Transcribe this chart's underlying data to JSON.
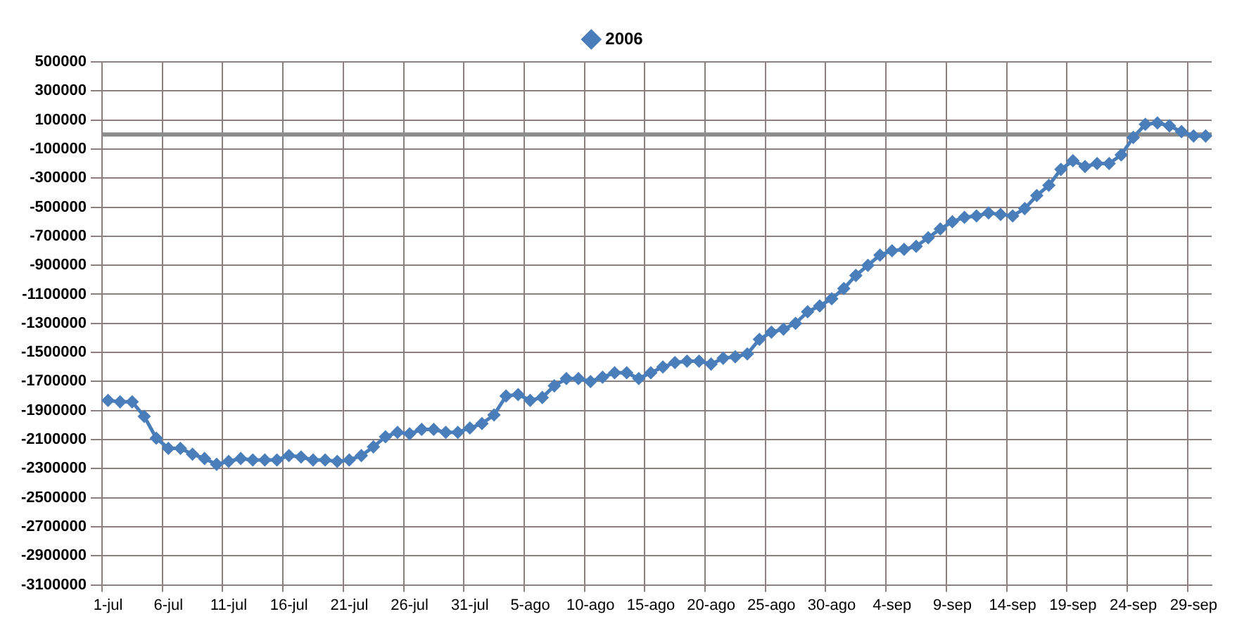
{
  "chart_data": {
    "type": "line",
    "categories": [
      "1-jul",
      null,
      null,
      null,
      null,
      "6-jul",
      null,
      null,
      null,
      null,
      "11-jul",
      null,
      null,
      null,
      null,
      "16-jul",
      null,
      null,
      null,
      null,
      "21-jul",
      null,
      null,
      null,
      null,
      "26-jul",
      null,
      null,
      null,
      null,
      "31-jul",
      null,
      null,
      null,
      null,
      "5-ago",
      null,
      null,
      null,
      null,
      "10-ago",
      null,
      null,
      null,
      null,
      "15-ago",
      null,
      null,
      null,
      null,
      "20-ago",
      null,
      null,
      null,
      null,
      "25-ago",
      null,
      null,
      null,
      null,
      "30-ago",
      null,
      null,
      null,
      null,
      "4-sep",
      null,
      null,
      null,
      null,
      "9-sep",
      null,
      null,
      null,
      null,
      "14-sep",
      null,
      null,
      null,
      null,
      "19-sep",
      null,
      null,
      null,
      null,
      "24-sep",
      null,
      null,
      null,
      null,
      "29-sep",
      null
    ],
    "series": [
      {
        "name": "2006",
        "color": "#4a7ebb",
        "values": [
          -1830000,
          -1840000,
          -1840000,
          -1940000,
          -2090000,
          -2160000,
          -2160000,
          -2200000,
          -2230000,
          -2270000,
          -2250000,
          -2230000,
          -2240000,
          -2240000,
          -2240000,
          -2210000,
          -2220000,
          -2240000,
          -2240000,
          -2250000,
          -2240000,
          -2210000,
          -2150000,
          -2080000,
          -2050000,
          -2060000,
          -2030000,
          -2030000,
          -2050000,
          -2050000,
          -2020000,
          -1990000,
          -1930000,
          -1800000,
          -1790000,
          -1830000,
          -1810000,
          -1730000,
          -1680000,
          -1680000,
          -1700000,
          -1670000,
          -1640000,
          -1640000,
          -1680000,
          -1640000,
          -1600000,
          -1570000,
          -1560000,
          -1560000,
          -1580000,
          -1540000,
          -1530000,
          -1510000,
          -1410000,
          -1360000,
          -1340000,
          -1300000,
          -1220000,
          -1180000,
          -1130000,
          -1060000,
          -970000,
          -900000,
          -830000,
          -800000,
          -790000,
          -770000,
          -710000,
          -650000,
          -600000,
          -570000,
          -560000,
          -540000,
          -550000,
          -560000,
          -510000,
          -420000,
          -350000,
          -240000,
          -180000,
          -220000,
          -200000,
          -200000,
          -140000,
          -20000,
          70000,
          80000,
          60000,
          20000,
          -10000,
          -10000
        ]
      }
    ],
    "ylim": [
      -3100000,
      500000
    ],
    "yticks": [
      500000,
      300000,
      100000,
      -100000,
      -300000,
      -500000,
      -700000,
      -900000,
      -1100000,
      -1300000,
      -1500000,
      -1700000,
      -1900000,
      -2100000,
      -2300000,
      -2500000,
      -2700000,
      -2900000,
      -3100000
    ],
    "ref_lines": [
      {
        "axis": "y",
        "value": 0,
        "color": "#8c8c8c"
      }
    ],
    "grid": true,
    "legend": "top",
    "marker": "diamond",
    "line_style": "solid"
  }
}
